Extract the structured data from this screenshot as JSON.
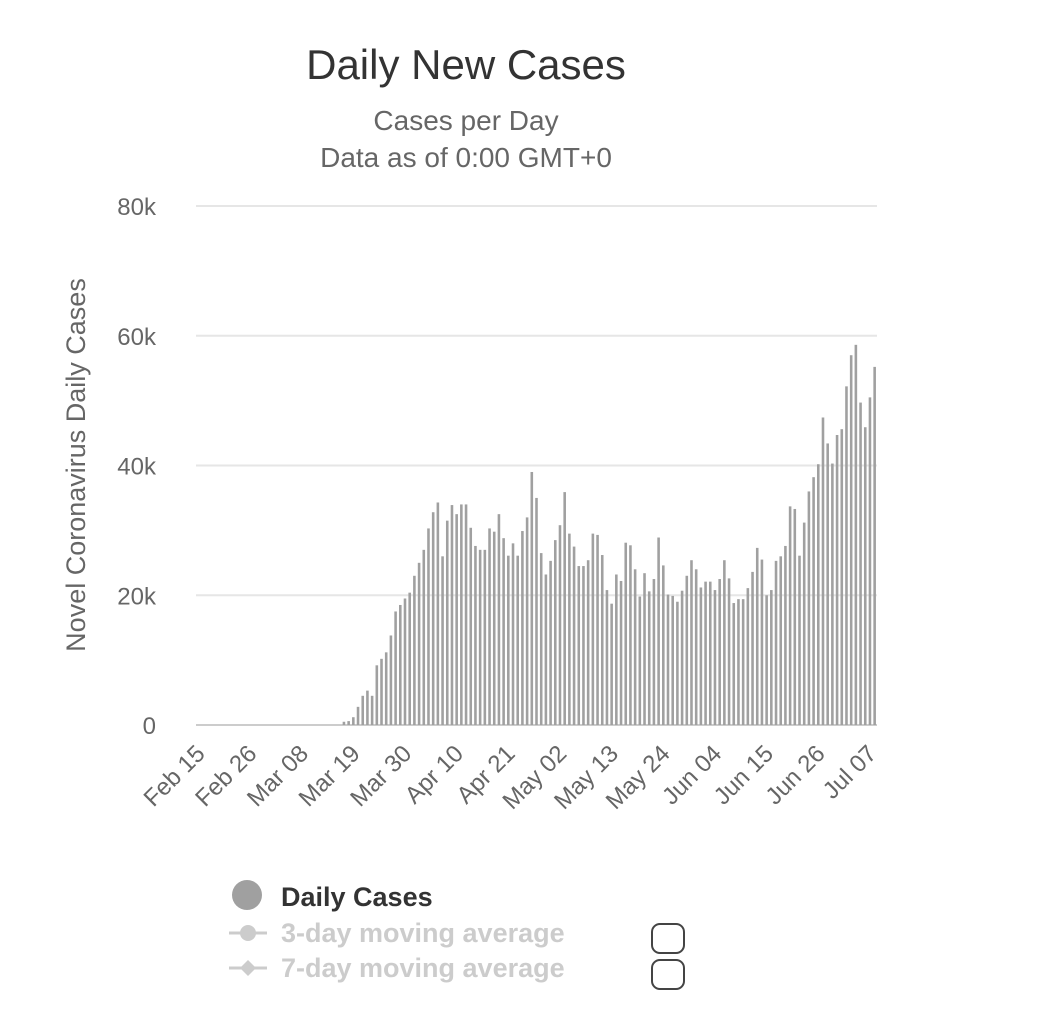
{
  "chart_data": {
    "type": "bar",
    "title": "Daily New Cases",
    "subtitle": "Cases per Day",
    "subtitle2": "Data as of 0:00 GMT+0",
    "ylabel": "Novel Coronavirus Daily Cases",
    "xlabel": "",
    "ylim": [
      0,
      80000
    ],
    "yticks": [
      {
        "value": 0,
        "label": "0"
      },
      {
        "value": 20000,
        "label": "20k"
      },
      {
        "value": 40000,
        "label": "40k"
      },
      {
        "value": 60000,
        "label": "60k"
      },
      {
        "value": 80000,
        "label": "80k"
      }
    ],
    "xticks": [
      {
        "index": 0,
        "label": "Feb 15"
      },
      {
        "index": 11,
        "label": "Feb 26"
      },
      {
        "index": 22,
        "label": "Mar 08"
      },
      {
        "index": 33,
        "label": "Mar 19"
      },
      {
        "index": 44,
        "label": "Mar 30"
      },
      {
        "index": 55,
        "label": "Apr 10"
      },
      {
        "index": 66,
        "label": "Apr 21"
      },
      {
        "index": 77,
        "label": "May 02"
      },
      {
        "index": 88,
        "label": "May 13"
      },
      {
        "index": 99,
        "label": "May 24"
      },
      {
        "index": 110,
        "label": "Jun 04"
      },
      {
        "index": 121,
        "label": "Jun 15"
      },
      {
        "index": 132,
        "label": "Jun 26"
      },
      {
        "index": 143,
        "label": "Jul 07"
      }
    ],
    "grid": true,
    "legend_position": "bottom-left",
    "bar_color": "#a0a0a0",
    "series": [
      {
        "name": "Daily Cases",
        "values": [
          0,
          0,
          0,
          0,
          0,
          0,
          0,
          0,
          0,
          0,
          0,
          0,
          0,
          0,
          0,
          0,
          0,
          0,
          0,
          0,
          0,
          0,
          0,
          0,
          0,
          0,
          0,
          0,
          0,
          0,
          0,
          500,
          600,
          1200,
          2800,
          4500,
          5300,
          4500,
          9200,
          10200,
          11200,
          13800,
          17500,
          18500,
          19500,
          20400,
          23000,
          25000,
          27000,
          30300,
          32800,
          34300,
          26000,
          31500,
          33900,
          32500,
          34000,
          34000,
          30400,
          27600,
          27000,
          27000,
          30300,
          29800,
          32500,
          28800,
          26100,
          28000,
          26100,
          29900,
          32000,
          39000,
          35000,
          26500,
          23200,
          25300,
          28500,
          30800,
          35900,
          29500,
          27500,
          24500,
          24500,
          25400,
          29500,
          29300,
          26200,
          20800,
          18700,
          23200,
          22200,
          28100,
          27700,
          24000,
          19800,
          23400,
          20600,
          22500,
          28900,
          24600,
          20100,
          19900,
          19000,
          20700,
          23000,
          25400,
          24000,
          21200,
          22100,
          22100,
          20800,
          22500,
          25400,
          22600,
          18800,
          19400,
          19400,
          21100,
          23600,
          27300,
          25500,
          20000,
          20800,
          25300,
          26000,
          27600,
          33700,
          33300,
          26100,
          31200,
          36000,
          38200,
          40200,
          47400,
          43400,
          40300,
          44700,
          45600,
          52200,
          57000,
          58600,
          49700,
          45900,
          50500,
          55200
        ]
      }
    ]
  },
  "legend": {
    "items": [
      {
        "label": "Daily Cases",
        "active": true,
        "color": "#a0a0a0"
      },
      {
        "label": "3-day moving average",
        "active": false,
        "color": "#cccccc"
      },
      {
        "label": "7-day moving average",
        "active": false,
        "color": "#cccccc"
      }
    ]
  }
}
